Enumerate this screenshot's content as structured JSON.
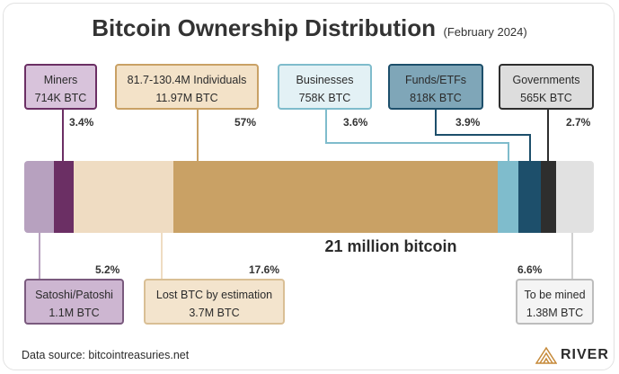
{
  "header": {
    "title": "Bitcoin Ownership Distribution",
    "subtitle": "(February 2024)"
  },
  "chart_data": {
    "type": "bar",
    "title": "Bitcoin Ownership Distribution",
    "subtitle": "(February 2024)",
    "total_label": "21 million bitcoin",
    "segments": [
      {
        "name": "Satoshi/Patoshi",
        "amount": "1.1M BTC",
        "percent": 5.2,
        "percent_label": "5.2%",
        "color": "#b7a1bf"
      },
      {
        "name": "Miners",
        "amount": "714K BTC",
        "percent": 3.4,
        "percent_label": "3.4%",
        "color": "#6b2f64"
      },
      {
        "name": "Lost BTC by estimation",
        "amount": "3.7M BTC",
        "percent": 17.6,
        "percent_label": "17.6%",
        "color": "#efdcc2"
      },
      {
        "name": "81.7-130.4M Individuals",
        "amount": "11.97M BTC",
        "percent": 57,
        "percent_label": "57%",
        "color": "#c9a165"
      },
      {
        "name": "Businesses",
        "amount": "758K BTC",
        "percent": 3.6,
        "percent_label": "3.6%",
        "color": "#7fbccc"
      },
      {
        "name": "Funds/ETFs",
        "amount": "818K BTC",
        "percent": 3.9,
        "percent_label": "3.9%",
        "color": "#1d4f6b"
      },
      {
        "name": "Governments",
        "amount": "565K BTC",
        "percent": 2.7,
        "percent_label": "2.7%",
        "color": "#2e2e2e"
      },
      {
        "name": "To be mined",
        "amount": "1.38M BTC",
        "percent": 6.6,
        "percent_label": "6.6%",
        "color": "#e1e1e1"
      }
    ]
  },
  "footer": {
    "source": "Data source: bitcointreasuries.net",
    "brand": "RIVER"
  },
  "colors": {
    "miners_border": "#6b2f64",
    "miners_fill": "#d8c3db",
    "individuals_border": "#c9a165",
    "individuals_fill": "#f3e2c8",
    "businesses_border": "#7fbccc",
    "businesses_fill": "#e3f1f5",
    "funds_border": "#1d4f6b",
    "funds_fill": "#7fa6b8",
    "gov_border": "#2e2e2e",
    "gov_fill": "#dddddd",
    "satoshi_border": "#7a5a7e",
    "satoshi_fill": "#cdb6d1",
    "lost_border": "#d9bf95",
    "lost_fill": "#f3e4cd",
    "mined_border": "#bdbdbd",
    "mined_fill": "#f4f4f4"
  }
}
